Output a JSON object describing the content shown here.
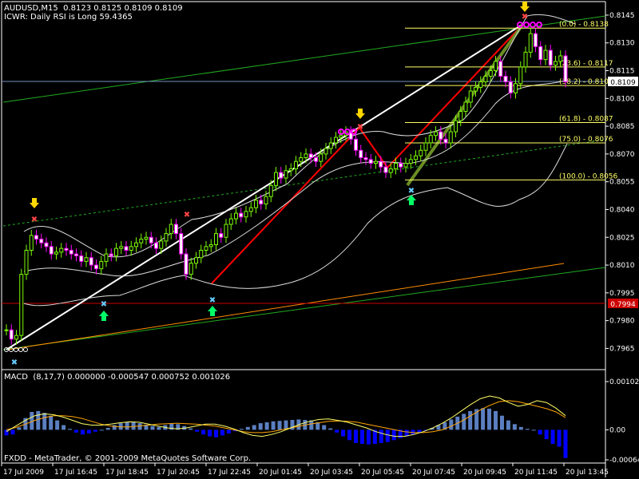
{
  "header": {
    "symbol_line": "AUDUSD,M15  0.8123 0.8125 0.8109 0.8109",
    "indicator_line": "ICWR: Daily RSI is Long 59.4365"
  },
  "macd_panel": {
    "label": "MACD  (8,17,7) 0.000000 -0.000547 0.000752 0.001026",
    "ticks": [
      "0.001026",
      "0.00",
      "-0.00064"
    ]
  },
  "footer": "FXDD - MetaTrader, © 2001-2009 MetaQuotes Software Corp.",
  "price_axis": {
    "ticks": [
      "0.8145",
      "0.8130",
      "0.8115",
      "0.8100",
      "0.8085",
      "0.8070",
      "0.8055",
      "0.8040",
      "0.8025",
      "0.8010",
      "0.7995",
      "0.7980",
      "0.7965"
    ],
    "current_price": "0.8109",
    "marked_level": "0.7994"
  },
  "time_axis": {
    "ticks": [
      "17 Jul 2009",
      "17 Jul 16:45",
      "17 Jul 18:45",
      "17 Jul 20:45",
      "17 Jul 22:45",
      "20 Jul 01:45",
      "20 Jul 03:45",
      "20 Jul 05:45",
      "20 Jul 07:45",
      "20 Jul 09:45",
      "20 Jul 11:45",
      "20 Jul 13:45"
    ]
  },
  "fib_levels": [
    {
      "label": "(0.0) - 0.8138",
      "price": 0.8138
    },
    {
      "label": "(23.6) - 0.8117",
      "price": 0.8117
    },
    {
      "label": "(38.2) - 0.8107",
      "price": 0.8107
    },
    {
      "label": "(61.8) - 0.8087",
      "price": 0.8087
    },
    {
      "label": "(75.0) - 0.8076",
      "price": 0.8076
    },
    {
      "label": "(100.0) - 0.8056",
      "price": 0.8056
    }
  ],
  "colors": {
    "background": "#000000",
    "bull_candle": "#7CFC00",
    "bear_candle": "#FF00FF",
    "candle_body": "#FFFFFF",
    "fib": "#FFFF66",
    "macd_hist_pos": "#5B7FC0",
    "macd_hist_neg": "#0000FF",
    "channel": "#22AA22",
    "red_line": "#FF0000",
    "orange_line": "#FF8C00",
    "current_price_tag": "#FFFFFF",
    "level_tag": "#CC0000"
  },
  "chart_data": [
    {
      "type": "candlestick",
      "title": "AUDUSD,M15",
      "y_range": [
        0.796,
        0.8148
      ],
      "close": [
        0.7975,
        0.797,
        0.7972,
        0.8005,
        0.8018,
        0.8026,
        0.8024,
        0.8022,
        0.802,
        0.8016,
        0.8017,
        0.8019,
        0.8018,
        0.8016,
        0.8015,
        0.8012,
        0.8014,
        0.801,
        0.8008,
        0.8012,
        0.8016,
        0.8015,
        0.8019,
        0.802,
        0.8018,
        0.802,
        0.8022,
        0.8024,
        0.8025,
        0.8022,
        0.8019,
        0.8023,
        0.8027,
        0.8032,
        0.8027,
        0.8016,
        0.8005,
        0.8011,
        0.8014,
        0.8018,
        0.802,
        0.8021,
        0.8027,
        0.8025,
        0.8032,
        0.8035,
        0.8038,
        0.8036,
        0.8039,
        0.8041,
        0.8045,
        0.8043,
        0.8047,
        0.8053,
        0.806,
        0.8057,
        0.8061,
        0.8062,
        0.8066,
        0.8068,
        0.807,
        0.8068,
        0.8066,
        0.807,
        0.8073,
        0.8076,
        0.8079,
        0.808,
        0.8082,
        0.8078,
        0.8072,
        0.8068,
        0.8067,
        0.8065,
        0.8066,
        0.8063,
        0.806,
        0.8062,
        0.8065,
        0.8063,
        0.8065,
        0.8067,
        0.8069,
        0.8072,
        0.8076,
        0.808,
        0.8082,
        0.8078,
        0.8076,
        0.8082,
        0.8088,
        0.8093,
        0.8098,
        0.8104,
        0.8106,
        0.8109,
        0.8112,
        0.8115,
        0.812,
        0.8112,
        0.8109,
        0.8103,
        0.8108,
        0.8117,
        0.8125,
        0.8135,
        0.8128,
        0.8121,
        0.8126,
        0.8118,
        0.812,
        0.8123,
        0.8109
      ]
    },
    {
      "type": "bar",
      "title": "MACD (8,17,7)",
      "y_range": [
        -0.00064,
        0.001026
      ],
      "values": [
        -0.00012,
        -0.0001,
        5e-05,
        0.00025,
        0.00038,
        0.0004,
        0.00036,
        0.0003,
        0.0002,
        0.0001,
        2e-05,
        -6e-05,
        -0.0001,
        -8e-05,
        -4e-05,
        0.0,
        4e-05,
        0.0001,
        0.00014,
        0.00016,
        0.00017,
        0.00014,
        0.00011,
        8e-05,
        6e-05,
        0.0001,
        0.00013,
        0.00012,
        8e-05,
        3e-05,
        -4e-05,
        -0.0001,
        -0.00014,
        -0.00016,
        -0.00012,
        -8e-05,
        -3e-05,
        2e-05,
        6e-05,
        0.0001,
        0.00014,
        0.00016,
        0.00018,
        0.00019,
        0.0002,
        0.00021,
        0.00022,
        0.00021,
        0.0002,
        0.00016,
        0.0001,
        3e-05,
        -6e-05,
        -0.00014,
        -0.00022,
        -0.00028,
        -0.0003,
        -0.00031,
        -0.0003,
        -0.00028,
        -0.00026,
        -0.00022,
        -0.00018,
        -0.00014,
        -0.0001,
        -6e-05,
        -2e-05,
        4e-05,
        0.0001,
        0.00016,
        0.00022,
        0.00028,
        0.00034,
        0.0004,
        0.00044,
        0.00046,
        0.00045,
        0.0004,
        0.0003,
        0.0002,
        0.00012,
        6e-05,
        2e-05,
        0.0,
        -0.0001,
        -0.0002,
        -0.0003,
        -0.00036,
        -0.0006
      ],
      "signal_line": [
        0.0,
        5e-05,
        0.00012,
        0.0002,
        0.00026,
        0.0003,
        0.0003,
        0.00028,
        0.00024,
        0.00018,
        0.00012,
        8e-05,
        6e-05,
        6e-05,
        8e-05,
        0.0001,
        0.00012,
        0.00013,
        0.00014,
        0.00013,
        0.00012,
        0.0001,
        8e-05,
        4e-05,
        0.0,
        -4e-05,
        -6e-05,
        -6e-05,
        -4e-05,
        0.0,
        4e-05,
        8e-05,
        0.00012,
        0.00015,
        0.00018,
        0.00019,
        0.00018,
        0.00016,
        0.00012,
        8e-05,
        4e-05,
        0.0,
        -4e-05,
        -6e-05,
        -6e-05,
        -4e-05,
        0.0,
        8e-05,
        0.00018,
        0.0003,
        0.00042,
        0.00052,
        0.0006,
        0.00062,
        0.0006,
        0.00055,
        0.0005,
        0.00045,
        0.00038,
        0.00026
      ],
      "macd_line": [
        -4e-05,
        8e-05,
        0.0002,
        0.0003,
        0.00034,
        0.00032,
        0.00027,
        0.0002,
        0.00013,
        0.0001,
        0.0001,
        0.00012,
        0.00015,
        0.00017,
        0.00016,
        0.00012,
        8e-05,
        4e-05,
        2e-05,
        4e-05,
        8e-05,
        0.00012,
        0.00012,
        8e-05,
        2e-05,
        -6e-05,
        -0.00012,
        -0.00014,
        -0.0001,
        -4e-05,
        4e-05,
        0.00012,
        0.00018,
        0.00022,
        0.00023,
        0.0002,
        0.00016,
        0.0001,
        4e-05,
        -4e-05,
        -0.0001,
        -0.00014,
        -0.00014,
        -0.0001,
        -4e-05,
        4e-05,
        0.00014,
        0.00026,
        0.0004,
        0.00054,
        0.00066,
        0.00072,
        0.00068,
        0.00058,
        0.0005,
        0.00054,
        0.00062,
        0.00058,
        0.00046,
        0.0003
      ]
    }
  ]
}
